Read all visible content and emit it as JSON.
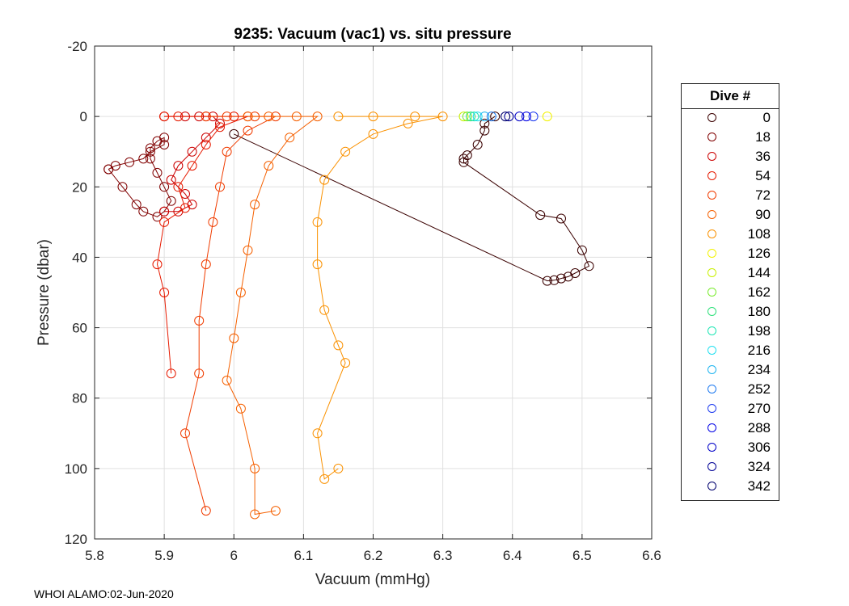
{
  "chart_data": {
    "type": "scatter",
    "title": "9235: Vacuum (vac1) vs. situ pressure",
    "xlabel": "Vacuum (mmHg)",
    "ylabel": "Pressure (dbar)",
    "xlim": [
      5.8,
      6.6
    ],
    "ylim": [
      -20,
      120
    ],
    "y_reversed": true,
    "grid": true,
    "xticks": [
      5.8,
      5.9,
      6.0,
      6.1,
      6.2,
      6.3,
      6.4,
      6.5,
      6.6
    ],
    "xtick_labels": [
      "5.8",
      "5.9",
      "6",
      "6.1",
      "6.2",
      "6.3",
      "6.4",
      "6.5",
      "6.6"
    ],
    "yticks": [
      -20,
      0,
      20,
      40,
      60,
      80,
      100,
      120
    ],
    "ytick_labels": [
      "-20",
      "0",
      "20",
      "40",
      "60",
      "80",
      "100",
      "120"
    ],
    "legend": {
      "title": "Dive #",
      "placement": "outside-right",
      "entries": [
        "0",
        "18",
        "36",
        "54",
        "72",
        "90",
        "108",
        "126",
        "144",
        "162",
        "180",
        "198",
        "216",
        "234",
        "252",
        "270",
        "288",
        "306",
        "324",
        "342"
      ],
      "colors": [
        "#3a0000",
        "#800000",
        "#cc0000",
        "#e61a00",
        "#f03c00",
        "#f56000",
        "#fa9100",
        "#f2f200",
        "#c8f000",
        "#7aeb2e",
        "#2ee07a",
        "#1ee6b4",
        "#22e0f0",
        "#1eb4f0",
        "#1e7af0",
        "#1e3cf0",
        "#0000e6",
        "#0000c8",
        "#000096",
        "#00006e"
      ]
    },
    "series": [
      {
        "name": "0",
        "color": "#3a0000",
        "x": [
          6.375,
          6.36,
          6.36,
          6.35,
          6.335,
          6.33,
          6.33,
          6.44,
          6.47,
          6.5,
          6.51,
          6.49,
          6.48,
          6.47,
          6.46,
          6.45,
          6.0
        ],
        "y": [
          0,
          2,
          4,
          8,
          11,
          12,
          13,
          28,
          29,
          38,
          42.5,
          44.5,
          45.5,
          46,
          46.5,
          46.7,
          5
        ]
      },
      {
        "name": "18",
        "color": "#800000",
        "x": [
          5.82,
          5.83,
          5.85,
          5.87,
          5.88,
          5.9,
          5.9,
          5.89,
          5.88,
          5.88,
          5.89,
          5.9,
          5.91,
          5.9,
          5.89,
          5.87,
          5.86,
          5.84,
          5.82
        ],
        "y": [
          15,
          14,
          13,
          12,
          10,
          8,
          6,
          7,
          9,
          12,
          16,
          20,
          24,
          27,
          28.5,
          27,
          25,
          20,
          15
        ]
      },
      {
        "name": "36",
        "color": "#cc0000",
        "x": [
          5.9,
          5.93,
          5.95,
          5.97,
          5.98,
          5.96,
          5.94,
          5.92,
          5.91,
          5.93,
          5.94,
          5.92,
          5.9
        ],
        "y": [
          0,
          0,
          0,
          0,
          2,
          6,
          10,
          14,
          18,
          22,
          25,
          27,
          27
        ]
      },
      {
        "name": "54",
        "color": "#e61a00",
        "x": [
          5.9,
          5.92,
          5.96,
          6.0,
          6.02,
          5.98,
          5.96,
          5.94,
          5.92,
          5.93,
          5.9,
          5.89,
          5.9,
          5.91
        ],
        "y": [
          0,
          0,
          0,
          0,
          0,
          3,
          8,
          14,
          20,
          26,
          30,
          42,
          50,
          73
        ]
      },
      {
        "name": "72",
        "color": "#f03c00",
        "x": [
          5.96,
          5.99,
          6.03,
          6.06,
          6.02,
          5.99,
          5.98,
          5.97,
          5.96,
          5.95,
          5.95,
          5.93,
          5.96
        ],
        "y": [
          0,
          0,
          0,
          0,
          4,
          10,
          20,
          30,
          42,
          58,
          73,
          90,
          112
        ]
      },
      {
        "name": "90",
        "color": "#f56000",
        "x": [
          6.02,
          6.05,
          6.09,
          6.12,
          6.08,
          6.05,
          6.03,
          6.02,
          6.01,
          6.0,
          5.99,
          6.01,
          6.03,
          6.03,
          6.06
        ],
        "y": [
          0,
          0,
          0,
          0,
          6,
          14,
          25,
          38,
          50,
          63,
          75,
          83,
          100,
          113,
          112
        ]
      },
      {
        "name": "108",
        "color": "#fa9100",
        "x": [
          6.15,
          6.2,
          6.26,
          6.3,
          6.25,
          6.2,
          6.16,
          6.13,
          6.12,
          6.12,
          6.13,
          6.15,
          6.16,
          6.12,
          6.13,
          6.15
        ],
        "y": [
          0,
          0,
          0,
          0,
          2,
          5,
          10,
          18,
          30,
          42,
          55,
          65,
          70,
          90,
          103,
          100
        ]
      },
      {
        "name": "126",
        "color": "#f2f200",
        "x": [
          6.45
        ],
        "y": [
          0
        ]
      },
      {
        "name": "144",
        "color": "#c8f000",
        "x": [
          6.33
        ],
        "y": [
          0
        ]
      },
      {
        "name": "162",
        "color": "#7aeb2e",
        "x": [
          6.335
        ],
        "y": [
          0
        ]
      },
      {
        "name": "180",
        "color": "#2ee07a",
        "x": [
          6.34
        ],
        "y": [
          0
        ]
      },
      {
        "name": "198",
        "color": "#1ee6b4",
        "x": [
          6.345
        ],
        "y": [
          0
        ]
      },
      {
        "name": "216",
        "color": "#22e0f0",
        "x": [
          6.35
        ],
        "y": [
          0
        ]
      },
      {
        "name": "234",
        "color": "#1eb4f0",
        "x": [
          6.36
        ],
        "y": [
          0
        ]
      },
      {
        "name": "252",
        "color": "#1e7af0",
        "x": [
          6.37
        ],
        "y": [
          0
        ]
      },
      {
        "name": "270",
        "color": "#1e3cf0",
        "x": [
          6.43
        ],
        "y": [
          0
        ]
      },
      {
        "name": "288",
        "color": "#0000e6",
        "x": [
          6.42
        ],
        "y": [
          0
        ]
      },
      {
        "name": "306",
        "color": "#0000c8",
        "x": [
          6.41
        ],
        "y": [
          0
        ]
      },
      {
        "name": "324",
        "color": "#000096",
        "x": [
          6.395
        ],
        "y": [
          0
        ]
      },
      {
        "name": "342",
        "color": "#00006e",
        "x": [
          6.39
        ],
        "y": [
          0
        ]
      }
    ]
  },
  "footer": "WHOI ALAMO:02-Jun-2020"
}
